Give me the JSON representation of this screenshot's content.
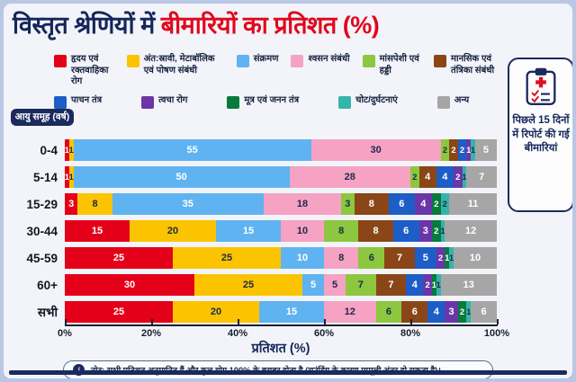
{
  "title": {
    "part1": "विस्तृत श्रेणियों में",
    "part2": "बीमारियों का प्रतिशत (%)"
  },
  "side_note": {
    "text": "पिछले 15 दिनों में रिपोर्ट की गई बीमारियां"
  },
  "axis_box_label": "आयु समूह (वर्ष)",
  "footer_note": "नोट: सभी प्रतिशत अनुमानित हैं और कुल योग 100% के बराबर होता है (राउंडिंग के कारण मामूली अंतर हो सकता है)।",
  "info_icon_glyph": "i",
  "colors": {
    "title_navy": "#14265a",
    "title_red": "#e1061c",
    "frame": "#b9c7e4",
    "card_bg": "#f2f4f9",
    "accent_navy": "#1b2a5e"
  },
  "chart_data": {
    "type": "bar",
    "stacked": true,
    "orientation": "horizontal",
    "title": "विस्तृत श्रेणियों में बीमारियों का प्रतिशत (%)",
    "xlabel": "प्रतिशत (%)",
    "ylabel": "आयु समूह (वर्ष)",
    "xlim": [
      0,
      100
    ],
    "x_ticks": [
      "0%",
      "20%",
      "40%",
      "60%",
      "80%",
      "100%"
    ],
    "legend_position": "top",
    "value_labels": true,
    "categories": [
      "0-4",
      "5-14",
      "15-29",
      "30-44",
      "45-59",
      "60+",
      "सभी"
    ],
    "series": [
      {
        "name": "हृदय एवं रक्तवाहिका रोग",
        "color": "#e50019",
        "text_color": "#ffffff",
        "values": [
          1,
          1,
          3,
          15,
          25,
          30,
          25
        ]
      },
      {
        "name": "अंत:स्रावी, मेटाबॉलिक एवं पोषण संबंधी",
        "color": "#fcc400",
        "text_color": "#1b2a4a",
        "values": [
          1,
          1,
          8,
          20,
          25,
          25,
          20
        ]
      },
      {
        "name": "संक्रमण",
        "color": "#5fb3f0",
        "text_color": "#ffffff",
        "values": [
          55,
          50,
          35,
          15,
          10,
          5,
          15
        ]
      },
      {
        "name": "श्वसन संबंधी",
        "color": "#f5a2c3",
        "text_color": "#1b2a4a",
        "values": [
          30,
          28,
          18,
          10,
          8,
          5,
          12
        ]
      },
      {
        "name": "मांसपेशी एवं हड्डी",
        "color": "#8dc63f",
        "text_color": "#1b2a4a",
        "values": [
          2,
          2,
          3,
          8,
          6,
          7,
          6
        ]
      },
      {
        "name": "मानसिक एवं तंत्रिका संबंधी",
        "color": "#8a4617",
        "text_color": "#ffffff",
        "values": [
          2,
          4,
          8,
          8,
          7,
          7,
          6
        ]
      },
      {
        "name": "पाचन तंत्र",
        "color": "#1d5dc8",
        "text_color": "#ffffff",
        "values": [
          2,
          4,
          6,
          6,
          5,
          4,
          4
        ]
      },
      {
        "name": "त्वचा रोग",
        "color": "#6b36a8",
        "text_color": "#ffffff",
        "values": [
          1,
          2,
          4,
          3,
          2,
          2,
          3
        ]
      },
      {
        "name": "मूत्र एवं जनन तंत्र",
        "color": "#067b3c",
        "text_color": "#ffffff",
        "values": [
          0,
          0,
          2,
          2,
          1,
          1,
          2
        ]
      },
      {
        "name": "चोट/दुर्घटनाएं",
        "color": "#36b3ab",
        "text_color": "#1b2a4a",
        "values": [
          1,
          1,
          2,
          1,
          1,
          1,
          1
        ]
      },
      {
        "name": "अन्य",
        "color": "#a6a6a6",
        "text_color": "#ffffff",
        "values": [
          5,
          7,
          11,
          12,
          10,
          13,
          6
        ]
      }
    ]
  }
}
